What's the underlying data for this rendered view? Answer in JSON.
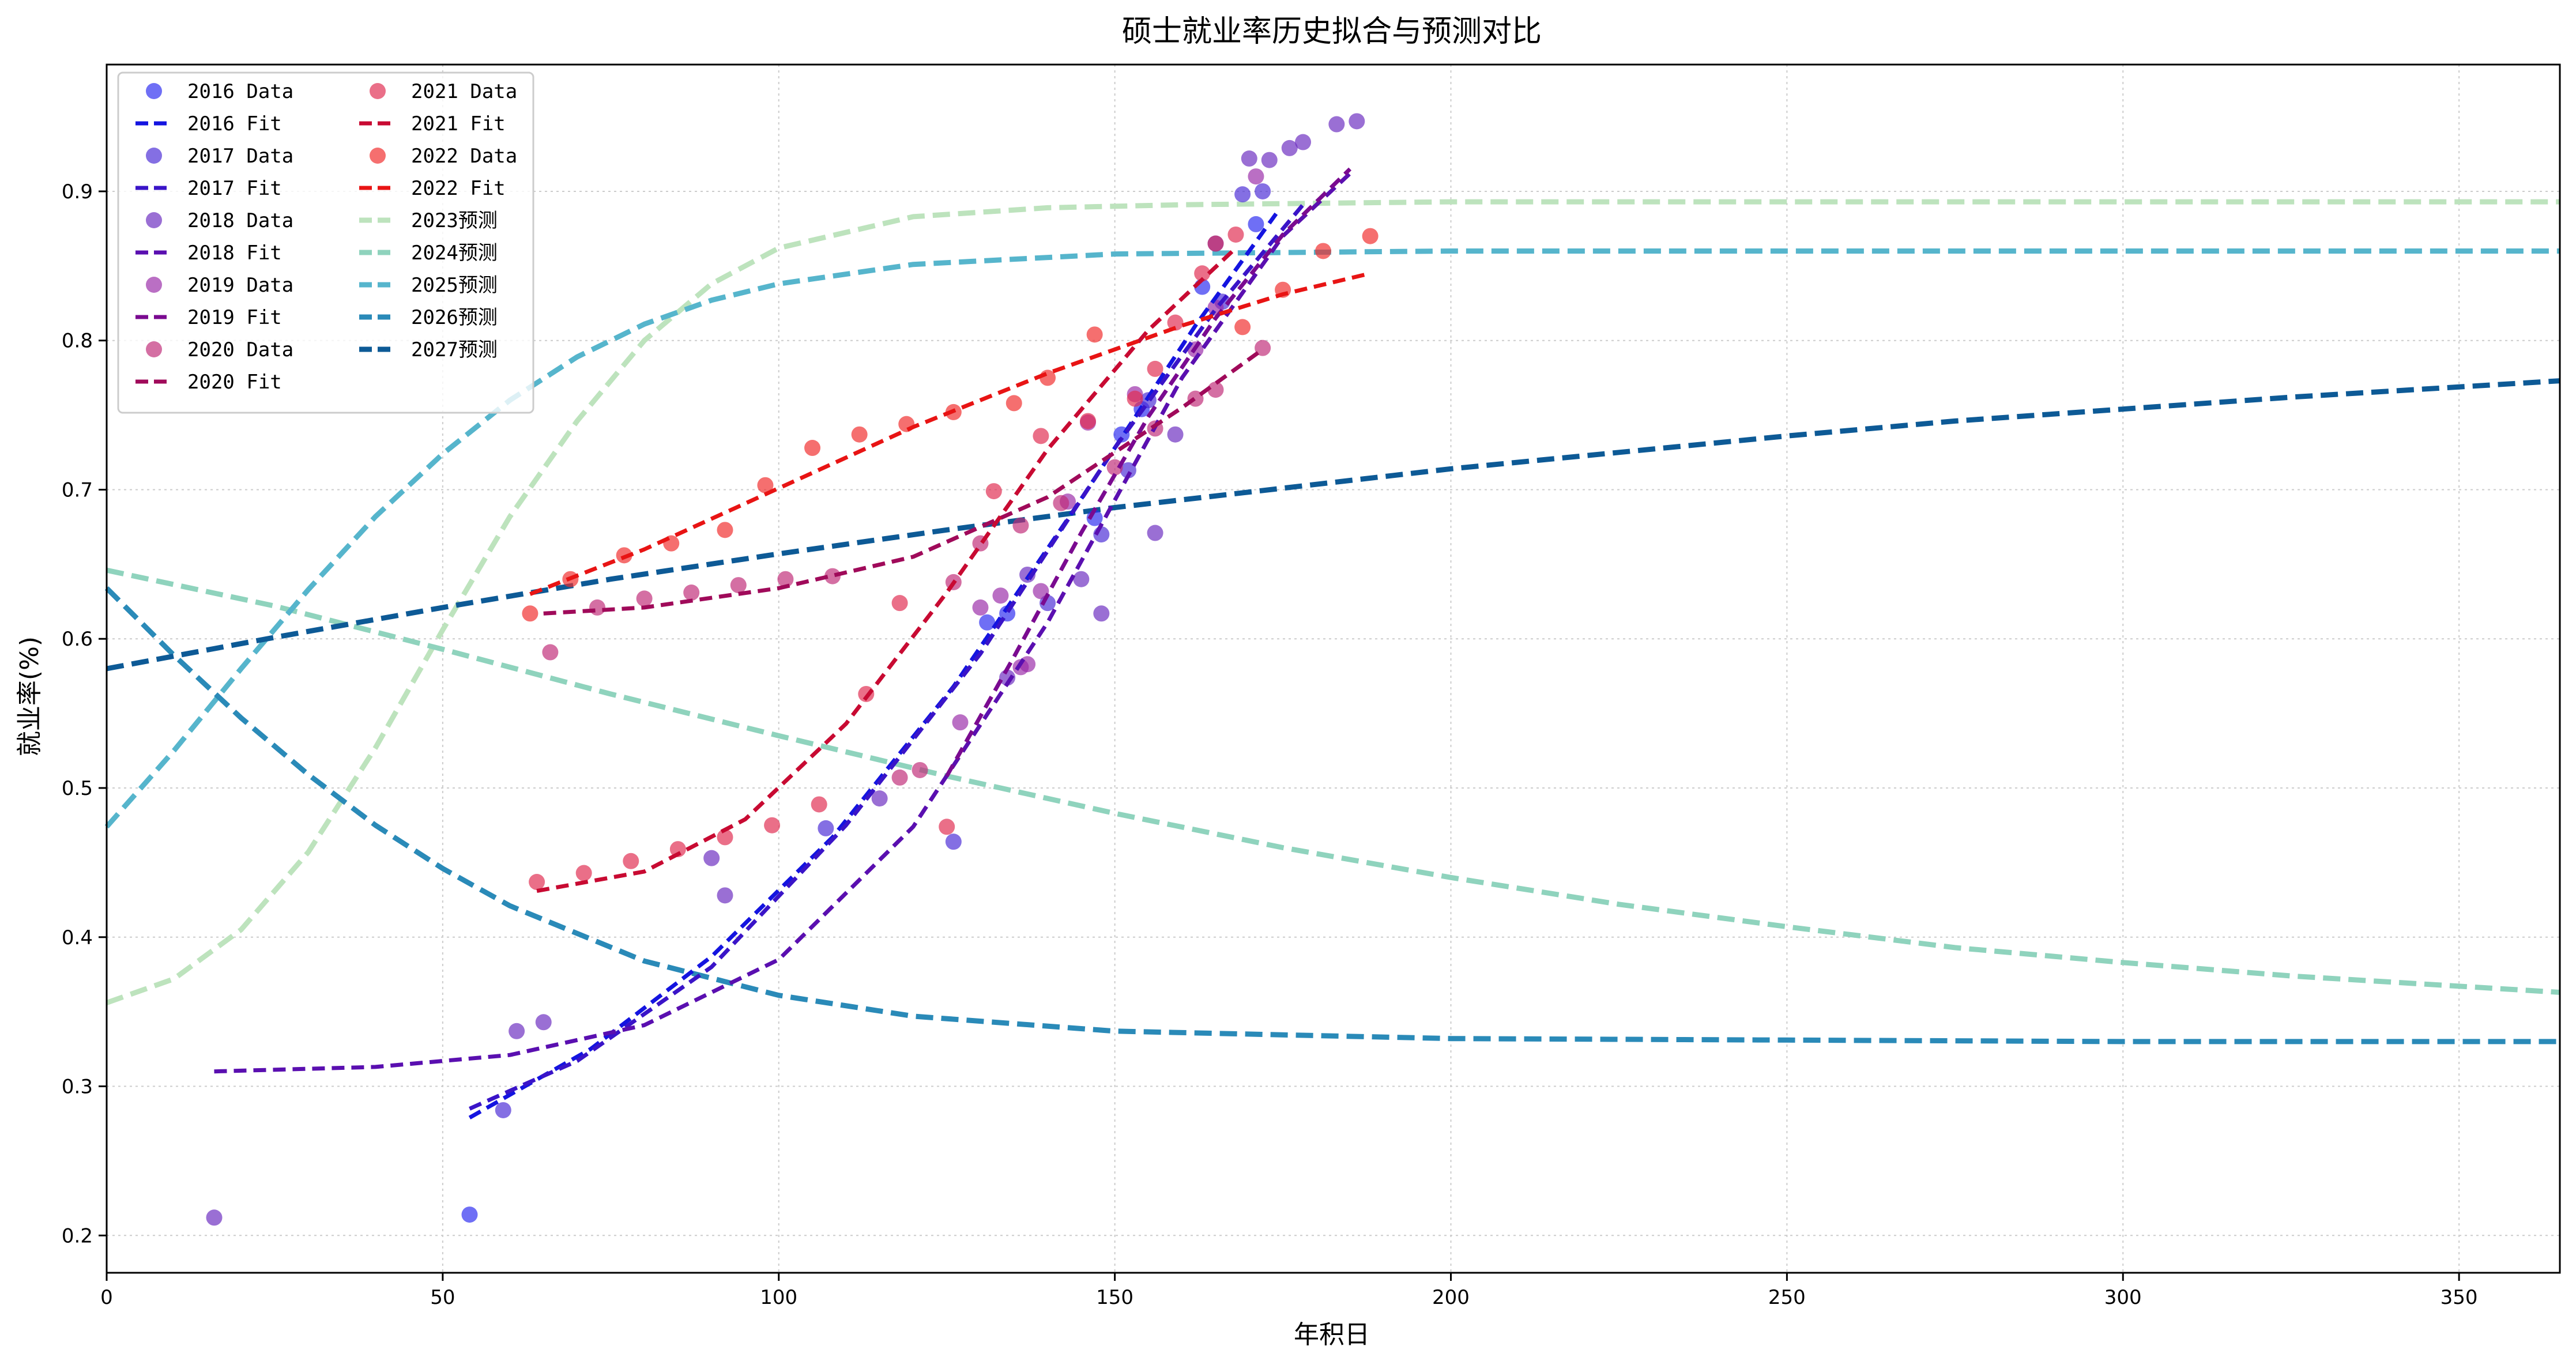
{
  "chart_data": {
    "type": "scatter",
    "title": "硕士就业率历史拟合与预测对比",
    "xlabel": "年积日",
    "ylabel": "就业率(%)",
    "xlim": [
      0,
      365
    ],
    "ylim": [
      0.175,
      0.985
    ],
    "xticks": [
      0,
      50,
      100,
      150,
      200,
      250,
      300,
      350
    ],
    "yticks": [
      0.2,
      0.3,
      0.4,
      0.5,
      0.6,
      0.7,
      0.8,
      0.9
    ],
    "grid": true,
    "legend_position": "top-left",
    "legend_columns": 2,
    "series": [
      {
        "name": "2016 Data",
        "kind": "scatter",
        "color": "#2b2bf0",
        "x": [
          54,
          131,
          134,
          147,
          151,
          154,
          163,
          165,
          171
        ],
        "y": [
          0.214,
          0.611,
          0.617,
          0.681,
          0.737,
          0.754,
          0.836,
          0.865,
          0.878
        ]
      },
      {
        "name": "2016 Fit",
        "kind": "fit",
        "color": "#1414e0",
        "x": [
          54,
          72,
          90,
          108,
          126,
          144,
          162,
          174
        ],
        "y": [
          0.279,
          0.325,
          0.387,
          0.467,
          0.568,
          0.687,
          0.81,
          0.885
        ]
      },
      {
        "name": "2017 Data",
        "kind": "scatter",
        "color": "#4a2bd6",
        "x": [
          59,
          107,
          126,
          140,
          148,
          152,
          155,
          166,
          169,
          172
        ],
        "y": [
          0.284,
          0.473,
          0.464,
          0.624,
          0.67,
          0.713,
          0.76,
          0.826,
          0.898,
          0.9
        ]
      },
      {
        "name": "2017 Fit",
        "kind": "fit",
        "color": "#3a14c8",
        "x": [
          54,
          70,
          90,
          110,
          130,
          150,
          165,
          178
        ],
        "y": [
          0.285,
          0.317,
          0.38,
          0.475,
          0.59,
          0.728,
          0.821,
          0.891
        ]
      },
      {
        "name": "2018 Data",
        "kind": "scatter",
        "color": "#6a2bc0",
        "x": [
          16,
          61,
          65,
          90,
          92,
          115,
          134,
          137,
          145,
          148,
          156,
          159,
          170,
          173,
          176,
          178,
          183,
          186
        ],
        "y": [
          0.212,
          0.337,
          0.343,
          0.453,
          0.428,
          0.493,
          0.574,
          0.643,
          0.64,
          0.617,
          0.671,
          0.737,
          0.922,
          0.921,
          0.929,
          0.933,
          0.945,
          0.947
        ]
      },
      {
        "name": "2018 Fit",
        "kind": "fit",
        "color": "#5a0fb0",
        "x": [
          16,
          40,
          60,
          80,
          100,
          120,
          140,
          160,
          175,
          185
        ],
        "y": [
          0.31,
          0.313,
          0.321,
          0.341,
          0.385,
          0.474,
          0.611,
          0.775,
          0.87,
          0.912
        ]
      },
      {
        "name": "2019 Data",
        "kind": "scatter",
        "color": "#9a2ba8",
        "x": [
          127,
          130,
          133,
          136,
          137,
          139,
          143,
          146,
          153,
          162,
          165,
          171
        ],
        "y": [
          0.544,
          0.621,
          0.629,
          0.581,
          0.583,
          0.632,
          0.692,
          0.745,
          0.764,
          0.794,
          0.822,
          0.91
        ]
      },
      {
        "name": "2019 Fit",
        "kind": "fit",
        "color": "#7a0a90",
        "x": [
          125,
          135,
          145,
          155,
          165,
          175,
          185
        ],
        "y": [
          0.508,
          0.588,
          0.671,
          0.749,
          0.815,
          0.871,
          0.915
        ]
      },
      {
        "name": "2020 Data",
        "kind": "scatter",
        "color": "#c02b78",
        "x": [
          66,
          73,
          80,
          87,
          94,
          101,
          108,
          118,
          121,
          126,
          130,
          136,
          142,
          150,
          156,
          162,
          165,
          172
        ],
        "y": [
          0.591,
          0.621,
          0.627,
          0.631,
          0.636,
          0.64,
          0.642,
          0.507,
          0.512,
          0.638,
          0.664,
          0.676,
          0.691,
          0.715,
          0.741,
          0.761,
          0.767,
          0.795
        ]
      },
      {
        "name": "2020 Fit",
        "kind": "fit",
        "color": "#a00a5a",
        "x": [
          65,
          80,
          100,
          120,
          140,
          160,
          172
        ],
        "y": [
          0.617,
          0.621,
          0.634,
          0.655,
          0.695,
          0.755,
          0.794
        ]
      },
      {
        "name": "2021 Data",
        "kind": "scatter",
        "color": "#e02b50",
        "x": [
          64,
          71,
          78,
          85,
          92,
          99,
          106,
          113,
          118,
          125,
          132,
          139,
          146,
          153,
          156,
          159,
          163,
          165,
          168
        ],
        "y": [
          0.437,
          0.443,
          0.451,
          0.459,
          0.467,
          0.475,
          0.489,
          0.563,
          0.624,
          0.474,
          0.699,
          0.736,
          0.746,
          0.761,
          0.781,
          0.812,
          0.845,
          0.865,
          0.871
        ]
      },
      {
        "name": "2021 Fit",
        "kind": "fit",
        "color": "#c80a32",
        "x": [
          64,
          80,
          95,
          110,
          125,
          140,
          155,
          168
        ],
        "y": [
          0.431,
          0.444,
          0.479,
          0.543,
          0.631,
          0.727,
          0.807,
          0.862
        ]
      },
      {
        "name": "2022 Data",
        "kind": "scatter",
        "color": "#f02b2b",
        "x": [
          63,
          69,
          77,
          84,
          92,
          98,
          105,
          112,
          119,
          126,
          135,
          140,
          147,
          169,
          175,
          181,
          188
        ],
        "y": [
          0.617,
          0.64,
          0.656,
          0.664,
          0.673,
          0.703,
          0.728,
          0.737,
          0.744,
          0.752,
          0.758,
          0.775,
          0.804,
          0.809,
          0.834,
          0.86,
          0.87
        ]
      },
      {
        "name": "2022 Fit",
        "kind": "fit",
        "color": "#e81414",
        "x": [
          63,
          80,
          100,
          120,
          140,
          160,
          175,
          188
        ],
        "y": [
          0.63,
          0.66,
          0.701,
          0.742,
          0.778,
          0.81,
          0.831,
          0.845
        ]
      },
      {
        "name": "2023预测",
        "kind": "forecast",
        "color": "#bde3bd",
        "x": [
          0,
          10,
          20,
          30,
          40,
          50,
          60,
          70,
          80,
          90,
          100,
          120,
          140,
          160,
          200,
          250,
          300,
          365
        ],
        "y": [
          0.356,
          0.372,
          0.405,
          0.457,
          0.527,
          0.606,
          0.682,
          0.746,
          0.8,
          0.838,
          0.862,
          0.883,
          0.889,
          0.891,
          0.893,
          0.893,
          0.893,
          0.893
        ]
      },
      {
        "name": "2024预测",
        "kind": "forecast",
        "color": "#8fd3bd",
        "x": [
          0,
          25,
          50,
          75,
          100,
          125,
          150,
          175,
          200,
          225,
          250,
          275,
          300,
          325,
          365
        ],
        "y": [
          0.646,
          0.622,
          0.593,
          0.563,
          0.535,
          0.508,
          0.483,
          0.46,
          0.44,
          0.422,
          0.407,
          0.393,
          0.383,
          0.374,
          0.363
        ]
      },
      {
        "name": "2025预测",
        "kind": "forecast",
        "color": "#56b5cc",
        "x": [
          0,
          10,
          20,
          30,
          40,
          50,
          60,
          70,
          80,
          90,
          100,
          120,
          150,
          200,
          365
        ],
        "y": [
          0.474,
          0.525,
          0.58,
          0.633,
          0.682,
          0.724,
          0.76,
          0.789,
          0.811,
          0.827,
          0.838,
          0.851,
          0.858,
          0.86,
          0.86
        ]
      },
      {
        "name": "2026预测",
        "kind": "forecast",
        "color": "#2a8ab8",
        "x": [
          0,
          10,
          20,
          30,
          40,
          50,
          60,
          80,
          100,
          120,
          150,
          200,
          250,
          300,
          365
        ],
        "y": [
          0.634,
          0.589,
          0.547,
          0.509,
          0.475,
          0.446,
          0.421,
          0.384,
          0.361,
          0.347,
          0.337,
          0.332,
          0.331,
          0.33,
          0.33
        ]
      },
      {
        "name": "2027预测",
        "kind": "forecast",
        "color": "#0d5a96",
        "x": [
          0,
          25,
          50,
          75,
          100,
          125,
          150,
          175,
          200,
          225,
          250,
          275,
          300,
          325,
          365
        ],
        "y": [
          0.58,
          0.601,
          0.621,
          0.64,
          0.657,
          0.673,
          0.688,
          0.701,
          0.714,
          0.725,
          0.736,
          0.746,
          0.754,
          0.762,
          0.773
        ]
      }
    ]
  }
}
